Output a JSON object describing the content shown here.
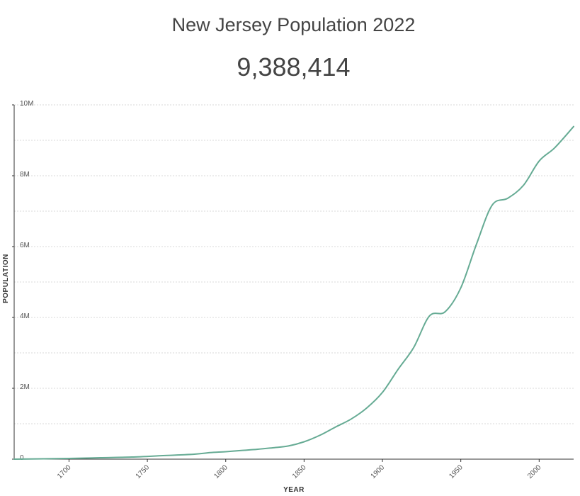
{
  "header": {
    "title": "New Jersey Population 2022",
    "population": "9,388,414"
  },
  "colors": {
    "line": "#66ab94",
    "grid": "#d9d9d9",
    "axis": "#333333"
  },
  "chart_data": {
    "type": "line",
    "xlabel": "YEAR",
    "ylabel": "POPULATION",
    "xlim": [
      1665,
      2022
    ],
    "ylim": [
      0,
      10000000
    ],
    "x_ticks": [
      1700,
      1750,
      1800,
      1850,
      1900,
      1950,
      2000
    ],
    "y_ticks": [
      {
        "value": 0,
        "label": "0"
      },
      {
        "value": 2000000,
        "label": "2M"
      },
      {
        "value": 4000000,
        "label": "4M"
      },
      {
        "value": 6000000,
        "label": "6M"
      },
      {
        "value": 8000000,
        "label": "8M"
      },
      {
        "value": 10000000,
        "label": "10M"
      }
    ],
    "grid": true,
    "series": [
      {
        "x": [
          1665,
          1700,
          1720,
          1740,
          1760,
          1780,
          1790,
          1800,
          1810,
          1820,
          1830,
          1840,
          1850,
          1860,
          1870,
          1880,
          1890,
          1900,
          1910,
          1920,
          1930,
          1940,
          1950,
          1960,
          1970,
          1980,
          1990,
          2000,
          2010,
          2022
        ],
        "y": [
          0,
          20000,
          40000,
          60000,
          100000,
          140000,
          184000,
          211000,
          246000,
          278000,
          321000,
          373000,
          490000,
          672000,
          906000,
          1131000,
          1445000,
          1884000,
          2537000,
          3156000,
          4041000,
          4160000,
          4835000,
          6067000,
          7168000,
          7365000,
          7730000,
          8414000,
          8792000,
          9388414
        ]
      }
    ]
  }
}
